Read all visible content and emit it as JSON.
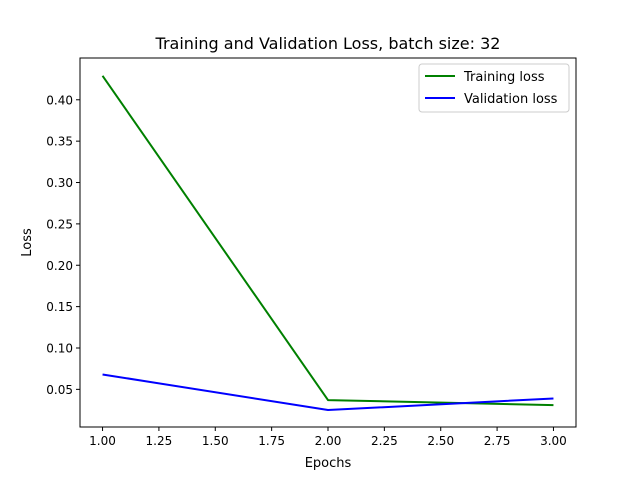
{
  "chart_data": {
    "type": "line",
    "title": "Training and Validation Loss, batch size: 32",
    "xlabel": "Epochs",
    "ylabel": "Loss",
    "xlim": [
      0.9,
      3.1
    ],
    "ylim": [
      0.0045,
      0.4505
    ],
    "xticks": [
      "1.00",
      "1.25",
      "1.50",
      "1.75",
      "2.00",
      "2.25",
      "2.50",
      "2.75",
      "3.00"
    ],
    "xtick_values": [
      1.0,
      1.25,
      1.5,
      1.75,
      2.0,
      2.25,
      2.5,
      2.75,
      3.0
    ],
    "yticks": [
      "0.05",
      "0.10",
      "0.15",
      "0.20",
      "0.25",
      "0.30",
      "0.35",
      "0.40"
    ],
    "ytick_values": [
      0.05,
      0.1,
      0.15,
      0.2,
      0.25,
      0.3,
      0.35,
      0.4
    ],
    "grid": false,
    "legend_position": "upper right",
    "x": [
      1,
      2,
      3
    ],
    "series": [
      {
        "name": "Training loss",
        "values": [
          0.429,
          0.037,
          0.031
        ],
        "color": "#008000"
      },
      {
        "name": "Validation loss",
        "values": [
          0.068,
          0.025,
          0.039
        ],
        "color": "#0000ff"
      }
    ]
  }
}
